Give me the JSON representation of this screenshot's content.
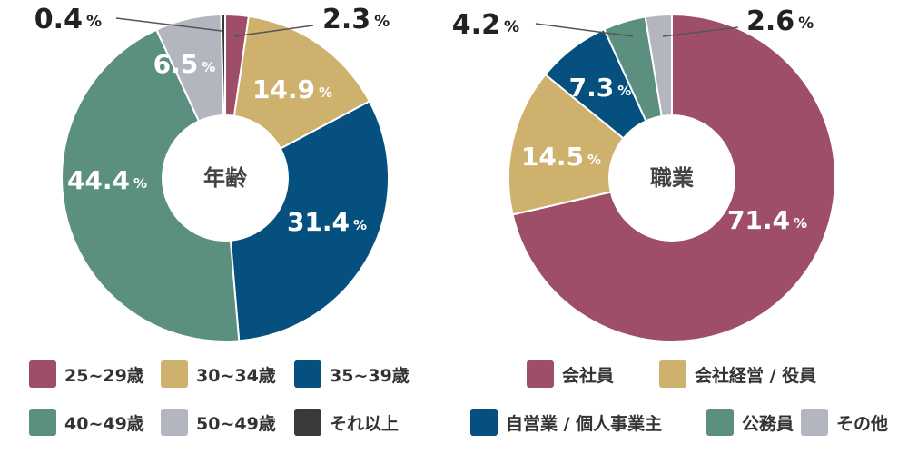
{
  "colors": {
    "c25": "#9E4E67",
    "c30": "#CDB16D",
    "c35": "#05507E",
    "c40": "#5B9081",
    "c50": "#B3B5BF",
    "cOlder": "#3A3A3A",
    "label_dark": "#222222",
    "label_light": "#ffffff",
    "center_text": "#444444"
  },
  "chart_data": [
    {
      "type": "pie",
      "center_label": "年齢",
      "slices": [
        {
          "label": "25~29歳",
          "value": 2.3,
          "value_text": "2.3",
          "color": "#9E4E67"
        },
        {
          "label": "30~34歳",
          "value": 14.9,
          "value_text": "14.9",
          "color": "#CDB16D"
        },
        {
          "label": "35~39歳",
          "value": 31.4,
          "value_text": "31.4",
          "color": "#05507E"
        },
        {
          "label": "40~49歳",
          "value": 44.4,
          "value_text": "44.4",
          "color": "#5B9081"
        },
        {
          "label": "50~49歳",
          "value": 6.5,
          "value_text": "6.5",
          "color": "#B3B5BF"
        },
        {
          "label": "それ以上",
          "value": 0.4,
          "value_text": "0.4",
          "color": "#3A3A3A"
        }
      ],
      "unit": "%"
    },
    {
      "type": "pie",
      "center_label": "職業",
      "slices": [
        {
          "label": "会社員",
          "value": 71.4,
          "value_text": "71.4",
          "color": "#9E4E67"
        },
        {
          "label": "会社経営 / 役員",
          "value": 14.5,
          "value_text": "14.5",
          "color": "#CDB16D"
        },
        {
          "label": "自営業 / 個人事業主",
          "value": 7.3,
          "value_text": "7.3",
          "color": "#05507E"
        },
        {
          "label": "公務員",
          "value": 4.2,
          "value_text": "4.2",
          "color": "#5B9081"
        },
        {
          "label": "その他",
          "value": 2.6,
          "value_text": "2.6",
          "color": "#B3B5BF"
        }
      ],
      "unit": "%"
    }
  ]
}
